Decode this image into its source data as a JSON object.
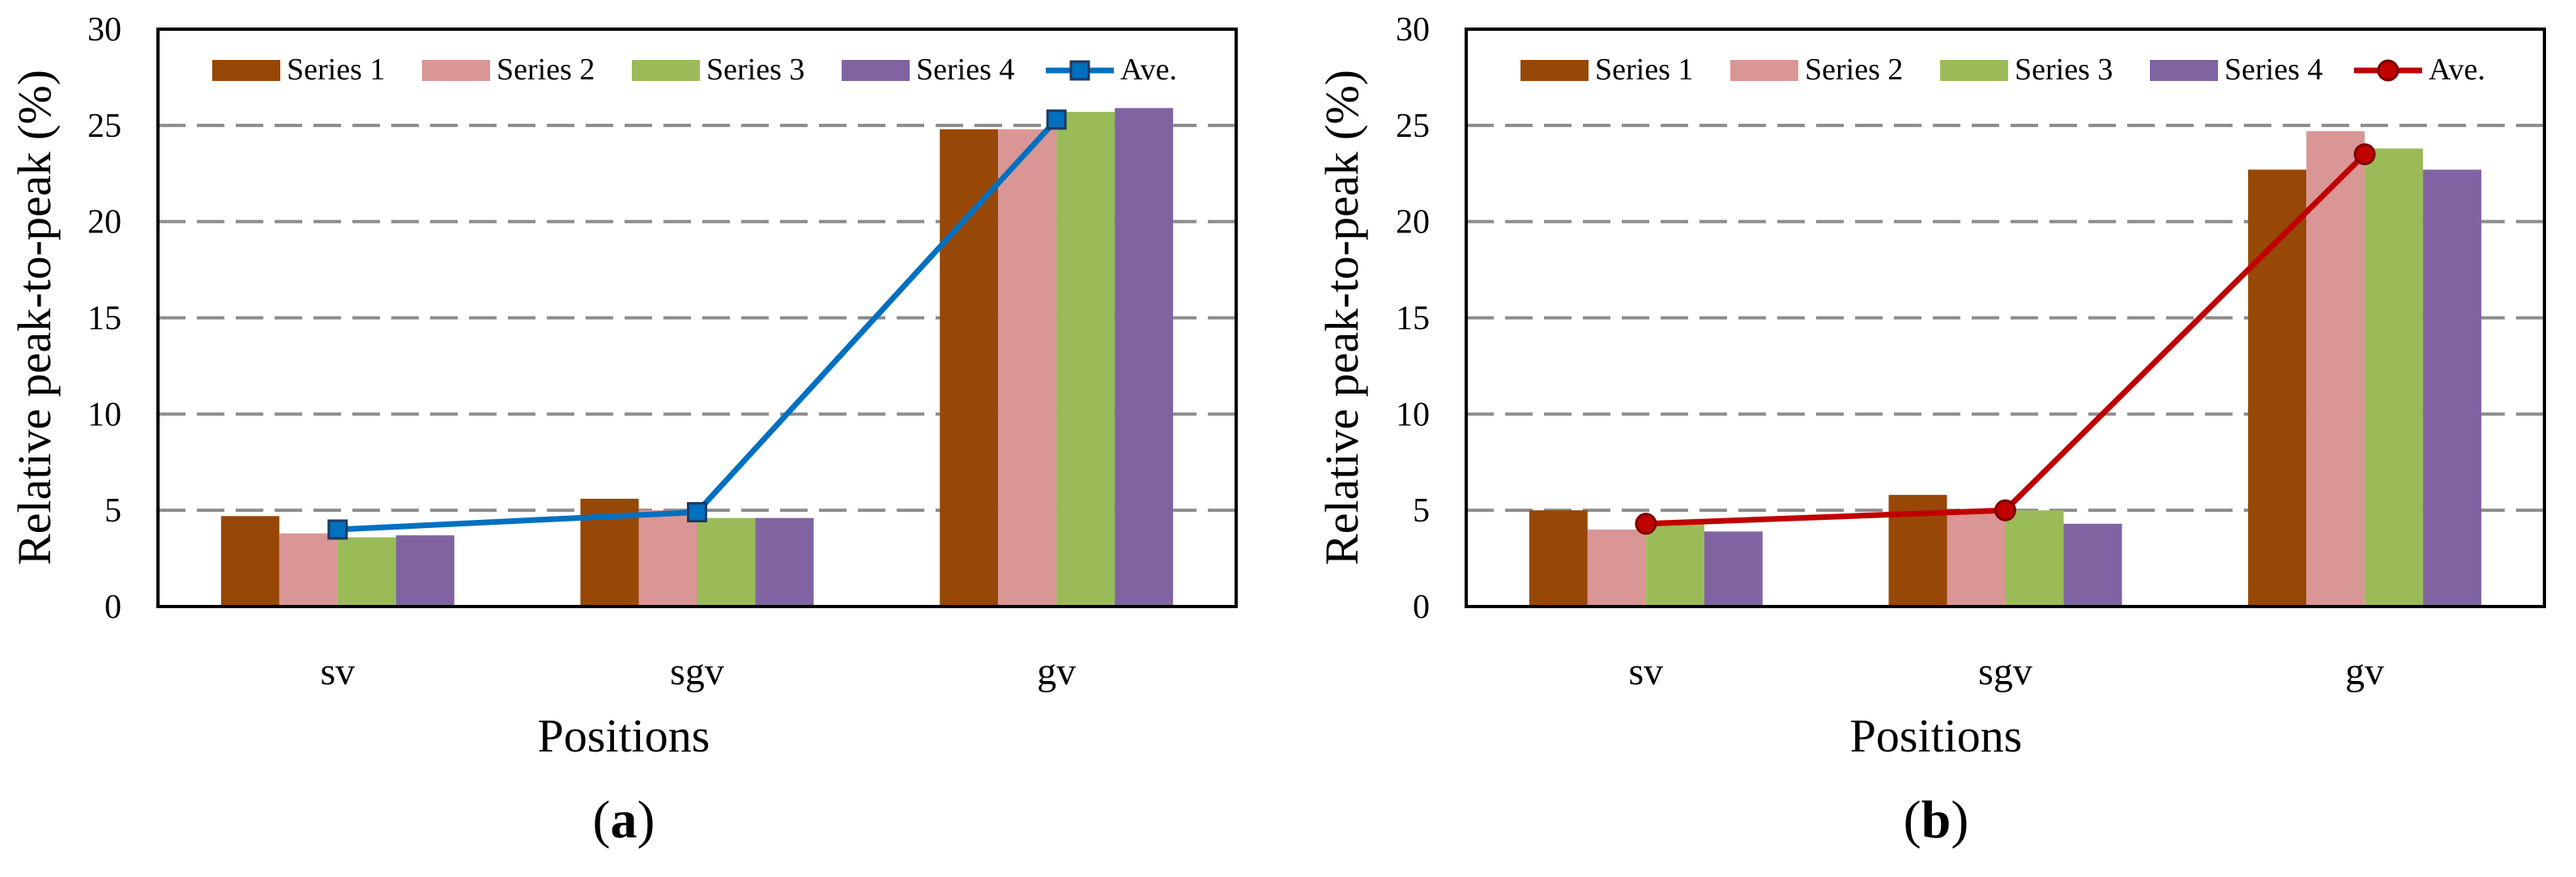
{
  "chart_data": [
    {
      "type": "bar",
      "panel": "a",
      "categories": [
        "sv",
        "sgv",
        "gv"
      ],
      "series": [
        {
          "name": "Series 1",
          "color": "#974706",
          "values": [
            4.7,
            5.6,
            24.8
          ]
        },
        {
          "name": "Series 2",
          "color": "#D99694",
          "values": [
            3.8,
            5.0,
            24.8
          ]
        },
        {
          "name": "Series 3",
          "color": "#9BBB59",
          "values": [
            3.6,
            4.6,
            25.7
          ]
        },
        {
          "name": "Series 4",
          "color": "#8064A2",
          "values": [
            3.7,
            4.6,
            25.9
          ]
        }
      ],
      "line": {
        "name": "Ave.",
        "color": "#0070C0",
        "marker": "square",
        "values": [
          4.0,
          4.9,
          25.3
        ]
      },
      "title": "",
      "xlabel": "Positions",
      "ylabel": "Relative peak-to-peak (%)",
      "ylim": [
        0,
        30
      ],
      "yticks": [
        "0",
        "5",
        "10",
        "15",
        "20",
        "25",
        "30"
      ],
      "grid": "dashed horizontal",
      "legend": "top",
      "label": {
        "open": "(",
        "letter": "a",
        "close": ")"
      }
    },
    {
      "type": "bar",
      "panel": "b",
      "categories": [
        "sv",
        "sgv",
        "gv"
      ],
      "series": [
        {
          "name": "Series 1",
          "color": "#974706",
          "values": [
            5.0,
            5.8,
            22.7
          ]
        },
        {
          "name": "Series 2",
          "color": "#D99694",
          "values": [
            4.0,
            5.0,
            24.7
          ]
        },
        {
          "name": "Series 3",
          "color": "#9BBB59",
          "values": [
            4.3,
            5.0,
            23.8
          ]
        },
        {
          "name": "Series 4",
          "color": "#8064A2",
          "values": [
            3.9,
            4.3,
            22.7
          ]
        }
      ],
      "line": {
        "name": "Ave.",
        "color": "#C00000",
        "marker": "circle",
        "values": [
          4.3,
          5.0,
          23.5
        ]
      },
      "title": "",
      "xlabel": "Positions",
      "ylabel": "Relative peak-to-peak (%)",
      "ylim": [
        0,
        30
      ],
      "yticks": [
        "0",
        "5",
        "10",
        "15",
        "20",
        "25",
        "30"
      ],
      "grid": "dashed horizontal",
      "legend": "top",
      "label": {
        "open": "(",
        "letter": "b",
        "close": ")"
      }
    }
  ]
}
